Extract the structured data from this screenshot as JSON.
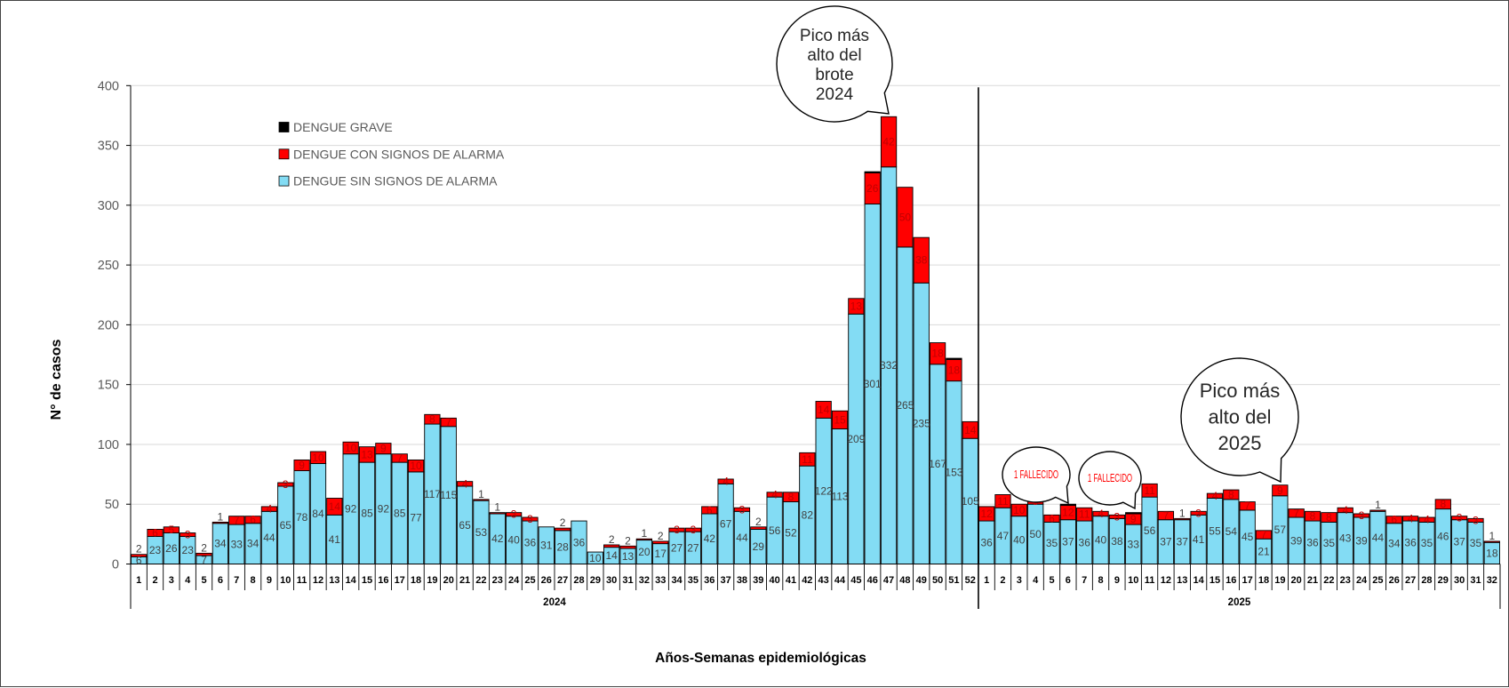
{
  "chart_data": {
    "type": "bar",
    "stacked": true,
    "ylabel": "N° de casos",
    "xlabel": "Años-Semanas epidemiológicas",
    "ylim": [
      0,
      400
    ],
    "yticks": [
      0,
      50,
      100,
      150,
      200,
      250,
      300,
      350,
      400
    ],
    "grid": true,
    "legend_position": "top-left",
    "groups": [
      {
        "label": "2024",
        "weeks": [
          1,
          2,
          3,
          4,
          5,
          6,
          7,
          8,
          9,
          10,
          11,
          12,
          13,
          14,
          15,
          16,
          17,
          18,
          19,
          20,
          21,
          22,
          23,
          24,
          25,
          26,
          27,
          28,
          29,
          30,
          31,
          32,
          33,
          34,
          35,
          36,
          37,
          38,
          39,
          40,
          41,
          42,
          43,
          44,
          45,
          46,
          47,
          48,
          49,
          50,
          51,
          52
        ]
      },
      {
        "label": "2025",
        "weeks": [
          1,
          2,
          3,
          4,
          5,
          6,
          7,
          8,
          9,
          10,
          11,
          12,
          13,
          14,
          15,
          16,
          17,
          18,
          19,
          20,
          21,
          22,
          23,
          24,
          25,
          26,
          27,
          28,
          29,
          30,
          31,
          32
        ]
      }
    ],
    "series": [
      {
        "name": "DENGUE SIN SIGNOS DE ALARMA",
        "color": "#83DCF4",
        "values": [
          [
            6,
            23,
            26,
            23,
            7,
            34,
            33,
            34,
            44,
            65,
            78,
            84,
            41,
            92,
            85,
            92,
            85,
            77,
            117,
            115,
            65,
            53,
            42,
            40,
            36,
            31,
            28,
            36,
            10,
            14,
            13,
            20,
            17,
            27,
            27,
            42,
            67,
            44,
            29,
            56,
            52,
            82,
            122,
            113,
            209,
            301,
            332,
            265,
            235,
            167,
            153,
            105
          ],
          [
            36,
            47,
            40,
            50,
            35,
            37,
            36,
            40,
            38,
            33,
            56,
            37,
            37,
            41,
            55,
            54,
            45,
            21,
            57,
            39,
            36,
            35,
            43,
            39,
            44,
            34,
            36,
            35,
            46,
            37,
            35,
            18
          ]
        ]
      },
      {
        "name": "DENGUE CON SIGNOS DE ALARMA",
        "color": "#FF0000",
        "values": [
          [
            2,
            6,
            5,
            3,
            2,
            1,
            7,
            6,
            4,
            3,
            9,
            10,
            14,
            10,
            13,
            9,
            7,
            10,
            8,
            7,
            4,
            1,
            1,
            3,
            3,
            0,
            2,
            0,
            0,
            2,
            2,
            1,
            2,
            3,
            3,
            6,
            4,
            3,
            2,
            4,
            8,
            11,
            14,
            15,
            13,
            26,
            42,
            50,
            38,
            18,
            18,
            14
          ],
          [
            12,
            11,
            10,
            5,
            6,
            12,
            11,
            4,
            3,
            9,
            11,
            7,
            1,
            3,
            4,
            8,
            7,
            7,
            9,
            7,
            8,
            8,
            4,
            3,
            1,
            6,
            4,
            4,
            8,
            3,
            3,
            1
          ]
        ]
      },
      {
        "name": "DENGUE GRAVE",
        "color": "#000000",
        "values": [
          [
            0,
            0,
            0,
            0,
            0,
            0,
            0,
            0,
            0,
            0,
            0,
            0,
            0,
            0,
            0,
            0,
            0,
            0,
            0,
            0,
            0,
            0,
            0,
            0,
            0,
            0,
            0,
            0,
            0,
            0,
            0,
            0,
            0,
            0,
            0,
            0,
            0,
            0,
            0,
            0,
            0,
            0,
            0,
            0,
            0,
            1,
            0,
            0,
            0,
            0,
            1,
            0
          ],
          [
            0,
            0,
            0,
            0,
            0,
            1,
            0,
            0,
            0,
            1,
            0,
            0,
            0,
            0,
            0,
            0,
            0,
            0,
            0,
            0,
            0,
            0,
            0,
            0,
            0,
            0,
            0,
            0,
            0,
            0,
            0,
            0
          ]
        ]
      }
    ],
    "annotations": [
      {
        "lines": [
          "Pico más",
          "alto del",
          "brote",
          "2024"
        ],
        "text_color": "#262626"
      },
      {
        "lines": [
          "Pico más",
          "alto del",
          "2025"
        ],
        "text_color": "#262626"
      },
      {
        "lines": [
          "1 FALLECIDO"
        ],
        "text_color": "#FF0000"
      },
      {
        "lines": [
          "1 FALLECIDO"
        ],
        "text_color": "#FF0000"
      }
    ]
  }
}
